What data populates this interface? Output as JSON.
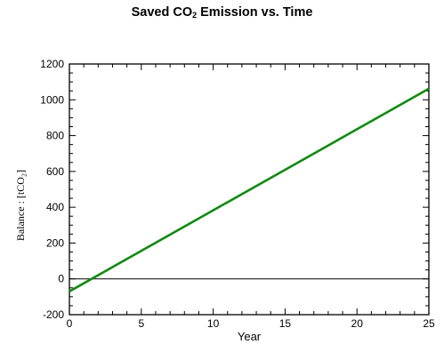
{
  "chart_data": {
    "type": "line",
    "title": {
      "main_before": "Saved CO",
      "main_sub": "2",
      "main_after": " Emission vs. Time"
    },
    "xlabel": "Year",
    "ylabel": "Balance : [tCO₂]",
    "xlim": [
      0,
      25
    ],
    "ylim": [
      -200,
      1200
    ],
    "x_major_ticks": [
      0,
      5,
      10,
      15,
      20,
      25
    ],
    "y_major_ticks": [
      -200,
      0,
      200,
      400,
      600,
      800,
      1000,
      1200
    ],
    "grid": false,
    "legend": "none",
    "zero_line": 0,
    "series": [
      {
        "color": "#118a11",
        "x": [
          0,
          25
        ],
        "y": [
          -70,
          1062
        ]
      }
    ]
  }
}
